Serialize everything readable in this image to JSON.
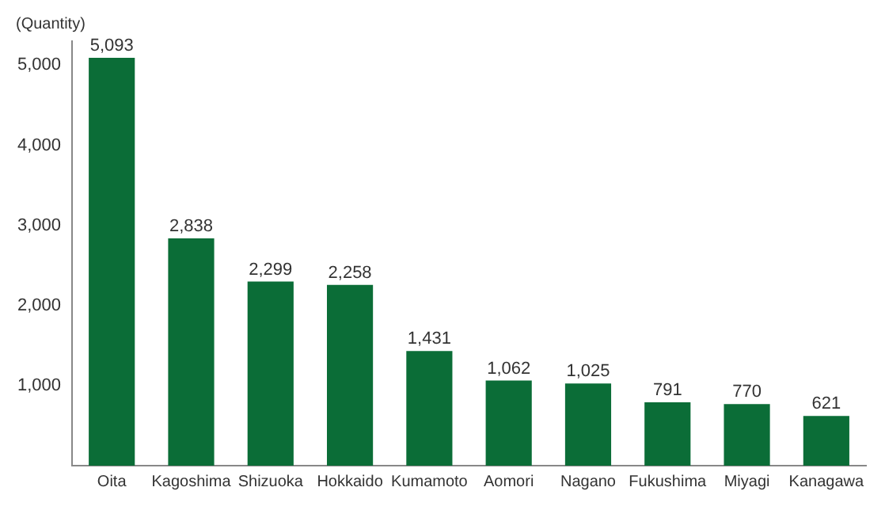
{
  "chart_data": {
    "type": "bar",
    "ylabel": "(Quantity)",
    "categories": [
      "Oita",
      "Kagoshima",
      "Shizuoka",
      "Hokkaido",
      "Kumamoto",
      "Aomori",
      "Nagano",
      "Fukushima",
      "Miyagi",
      "Kanagawa"
    ],
    "values": [
      5093,
      2838,
      2299,
      2258,
      1431,
      1062,
      1025,
      791,
      770,
      621
    ],
    "value_labels": [
      "5,093",
      "2,838",
      "2,299",
      "2,258",
      "1,431",
      "1,062",
      "1,025",
      "791",
      "770",
      "621"
    ],
    "color": "#0b6d37",
    "grid": false,
    "ylim": [
      0,
      5300
    ],
    "yticks": [
      {
        "value": 1000,
        "label": "1,000"
      },
      {
        "value": 2000,
        "label": "2,000"
      },
      {
        "value": 3000,
        "label": "3,000"
      },
      {
        "value": 4000,
        "label": "4,000"
      },
      {
        "value": 5000,
        "label": "5,000"
      }
    ]
  }
}
